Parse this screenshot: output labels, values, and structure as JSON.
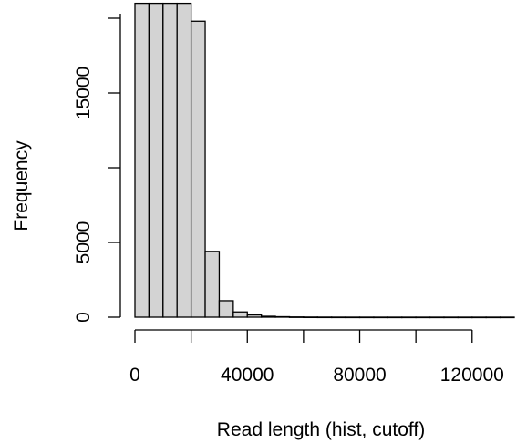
{
  "chart_data": {
    "type": "bar",
    "title": "",
    "xlabel": "Read length (hist, cutoff)",
    "ylabel": "Frequency",
    "bin_width": 5000,
    "bins_start": [
      0,
      5000,
      10000,
      15000,
      20000,
      25000,
      30000,
      35000,
      40000,
      45000,
      50000,
      55000,
      60000,
      65000,
      70000,
      75000,
      80000,
      85000,
      90000,
      95000,
      100000,
      105000,
      110000,
      115000,
      120000,
      125000,
      130000
    ],
    "values": [
      21000,
      21000,
      21000,
      21000,
      19800,
      4400,
      1100,
      350,
      150,
      60,
      30,
      15,
      8,
      5,
      3,
      2,
      2,
      1,
      1,
      1,
      1,
      1,
      1,
      1,
      1,
      1,
      1
    ],
    "xlim": [
      0,
      135000
    ],
    "ylim": [
      0,
      19800
    ],
    "x_ticks": [
      0,
      20000,
      40000,
      60000,
      80000,
      100000,
      120000
    ],
    "x_tick_labels": [
      "0",
      "40000",
      "80000",
      "120000"
    ],
    "x_tick_label_values": [
      0,
      40000,
      80000,
      120000
    ],
    "y_ticks": [
      0,
      5000,
      10000,
      15000,
      20000
    ],
    "y_tick_labels": [
      "0",
      "5000",
      "15000"
    ],
    "y_tick_label_values": [
      0,
      5000,
      15000
    ],
    "bar_fill": "#d3d3d3",
    "bar_stroke": "#000000",
    "grid": false,
    "legend": "none"
  }
}
